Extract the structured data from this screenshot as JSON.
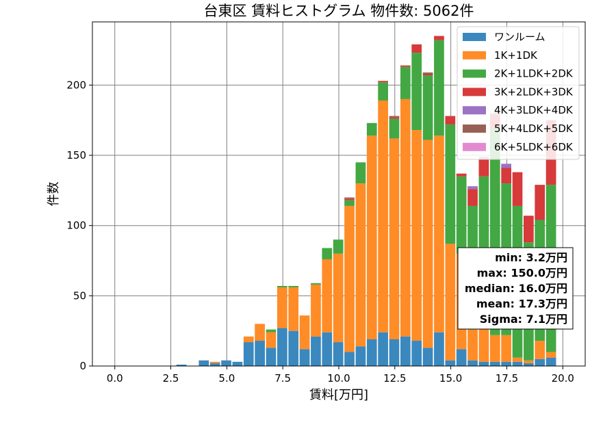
{
  "chart_data": {
    "type": "bar",
    "stacked": true,
    "title": "台東区 賃料ヒストグラム 物件数: 5062件",
    "xlabel": "賃料[万円]",
    "ylabel": "件数",
    "xlim": [
      -1.0,
      21.0
    ],
    "ylim": [
      0,
      245
    ],
    "grid": true,
    "legend_position": "top-right",
    "xticks": [
      0.0,
      2.5,
      5.0,
      7.5,
      10.0,
      12.5,
      15.0,
      17.5,
      20.0
    ],
    "xtick_labels": [
      "0.0",
      "2.5",
      "5.0",
      "7.5",
      "10.0",
      "12.5",
      "15.0",
      "17.5",
      "20.0"
    ],
    "yticks": [
      0,
      50,
      100,
      150,
      200
    ],
    "ytick_labels": [
      "0",
      "50",
      "100",
      "150",
      "200"
    ],
    "bin_width": 0.5,
    "bin_starts": [
      2.75,
      3.25,
      3.75,
      4.25,
      4.75,
      5.25,
      5.75,
      6.25,
      6.75,
      7.25,
      7.75,
      8.25,
      8.75,
      9.25,
      9.75,
      10.25,
      10.75,
      11.25,
      11.75,
      12.25,
      12.75,
      13.25,
      13.75,
      14.25,
      14.75,
      15.25,
      15.75,
      16.25,
      16.75,
      17.25,
      17.75,
      18.25,
      18.75,
      19.25
    ],
    "series": [
      {
        "name": "ワンルーム",
        "color": "#3a88be",
        "values": [
          1,
          0,
          4,
          2,
          4,
          3,
          17,
          18,
          13,
          27,
          25,
          12,
          21,
          24,
          17,
          10,
          14,
          19,
          24,
          19,
          21,
          18,
          13,
          24,
          4,
          12,
          4,
          3,
          3,
          3,
          3,
          2,
          5,
          6
        ]
      },
      {
        "name": "1K+1DK",
        "color": "#ff8c26",
        "values": [
          0,
          0,
          0,
          1,
          0,
          0,
          4,
          12,
          11,
          29,
          31,
          24,
          37,
          52,
          63,
          104,
          116,
          145,
          165,
          143,
          169,
          150,
          148,
          140,
          83,
          68,
          22,
          24,
          19,
          19,
          3,
          2,
          13,
          4
        ]
      },
      {
        "name": "2K+1LDK+2DK",
        "color": "#43a843",
        "values": [
          0,
          0,
          0,
          0,
          0,
          0,
          0,
          0,
          2,
          1,
          1,
          0,
          1,
          8,
          10,
          4,
          15,
          9,
          13,
          14,
          23,
          55,
          46,
          68,
          85,
          55,
          88,
          108,
          147,
          108,
          108,
          84,
          86,
          119
        ]
      },
      {
        "name": "3K+2LDK+3DK",
        "color": "#d63a3a",
        "values": [
          0,
          0,
          0,
          0,
          0,
          0,
          0,
          0,
          0,
          0,
          0,
          0,
          0,
          0,
          0,
          1,
          0,
          0,
          1,
          1,
          1,
          6,
          1,
          3,
          6,
          2,
          12,
          12,
          10,
          11,
          24,
          19,
          25,
          46
        ]
      },
      {
        "name": "4K+3LDK+4DK",
        "color": "#9b72c4",
        "values": [
          0,
          0,
          0,
          0,
          0,
          0,
          0,
          0,
          0,
          0,
          0,
          0,
          0,
          0,
          0,
          0,
          0,
          0,
          0,
          0,
          0,
          0,
          0,
          0,
          0,
          0,
          2,
          2,
          1,
          3,
          0,
          0,
          0,
          0
        ]
      },
      {
        "name": "5K+4LDK+5DK",
        "color": "#976255",
        "values": [
          0,
          0,
          0,
          0,
          0,
          0,
          0,
          0,
          0,
          0,
          0,
          0,
          0,
          0,
          0,
          1,
          0,
          0,
          0,
          1,
          0,
          0,
          1,
          0,
          0,
          0,
          0,
          0,
          0,
          0,
          0,
          0,
          0,
          0
        ]
      },
      {
        "name": "6K+5LDK+6DK",
        "color": "#e28ad0",
        "values": [
          0,
          0,
          0,
          0,
          0,
          0,
          0,
          0,
          0,
          0,
          0,
          0,
          0,
          0,
          0,
          0,
          0,
          0,
          0,
          0,
          0,
          0,
          0,
          0,
          0,
          0,
          0,
          0,
          0,
          0,
          0,
          0,
          0,
          0
        ]
      }
    ],
    "stats": [
      "min: 3.2万円",
      "max: 150.0万円",
      "median: 16.0万円",
      "mean: 17.3万円",
      "Sigma: 7.1万円"
    ]
  }
}
